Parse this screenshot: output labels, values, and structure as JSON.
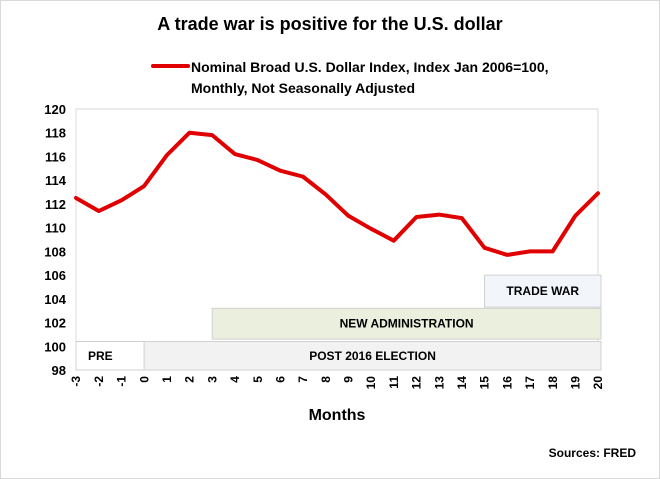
{
  "chart_data": {
    "type": "line",
    "title": "A trade war is positive for the U.S. dollar",
    "xlabel": "Months",
    "ylabel": "",
    "ylim": [
      98,
      120
    ],
    "yticks": [
      98,
      100,
      102,
      104,
      106,
      108,
      110,
      112,
      114,
      116,
      118,
      120
    ],
    "x": [
      -3,
      -2,
      -1,
      0,
      1,
      2,
      3,
      4,
      5,
      6,
      7,
      8,
      9,
      10,
      11,
      12,
      13,
      14,
      15,
      16,
      17,
      18,
      19,
      20
    ],
    "series": [
      {
        "name_line1": "Nominal Broad U.S. Dollar Index, Index Jan 2006=100,",
        "name_line2": "Monthly, Not Seasonally Adjusted",
        "color": "#e00000",
        "values": [
          112.5,
          111.4,
          112.3,
          113.5,
          116.1,
          118.0,
          117.8,
          116.2,
          115.7,
          114.8,
          114.3,
          112.8,
          111.0,
          109.9,
          108.9,
          110.9,
          111.1,
          110.8,
          108.3,
          107.7,
          108.0,
          108.0,
          111.0,
          112.9
        ]
      }
    ],
    "annotations": [
      {
        "label": "PRE",
        "x_start": -3,
        "x_end": 0,
        "y_from": 98,
        "y_to": 100.4,
        "fill": "#ffffff"
      },
      {
        "label": "POST 2016 ELECTION",
        "x_start": 0,
        "x_end": 20,
        "y_from": 98,
        "y_to": 100.4,
        "fill": "#f2f2f2"
      },
      {
        "label": "NEW ADMINISTRATION",
        "x_start": 3,
        "x_end": 20,
        "y_from": 100.6,
        "y_to": 103.2,
        "fill": "#ebf0de"
      },
      {
        "label": "TRADE WAR",
        "x_start": 15,
        "x_end": 20,
        "y_from": 103.3,
        "y_to": 106.0,
        "fill": "#f2f5fa"
      }
    ],
    "grid": false,
    "legend": "top"
  },
  "footer": {
    "sources": "Sources: FRED"
  }
}
